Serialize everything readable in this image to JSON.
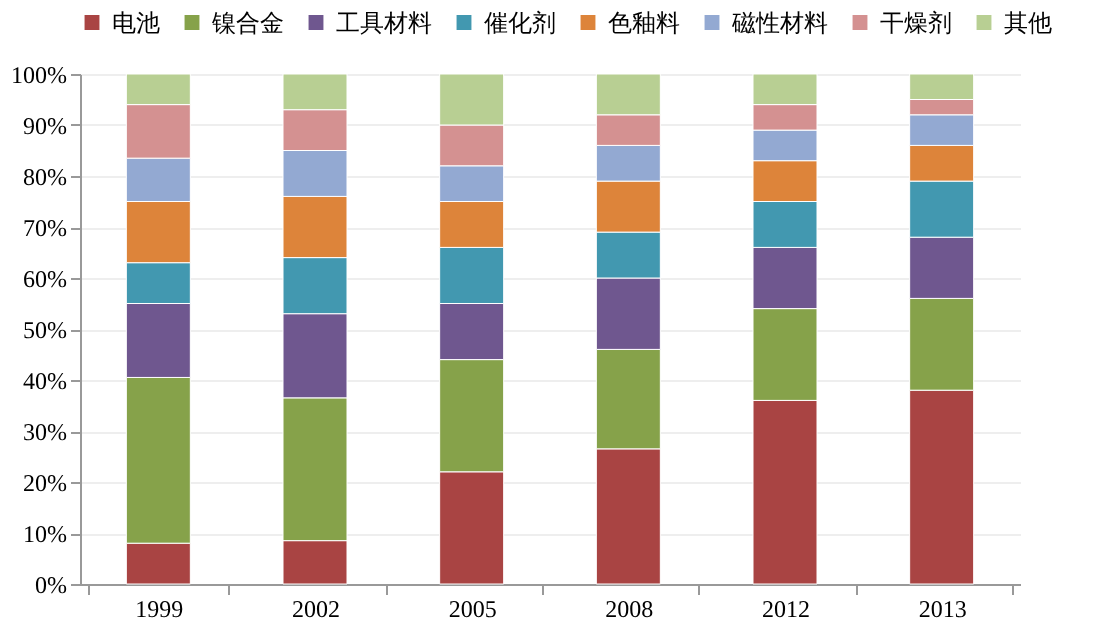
{
  "chart_data": {
    "type": "bar",
    "stacked": true,
    "categories": [
      "1999",
      "2002",
      "2005",
      "2008",
      "2012",
      "2013"
    ],
    "series": [
      {
        "name": "电池",
        "color": "#a94443",
        "values": [
          8,
          8.5,
          22,
          26.5,
          36,
          38
        ]
      },
      {
        "name": "镍合金",
        "color": "#86a24a",
        "values": [
          32.5,
          28,
          22,
          19.5,
          18,
          18
        ]
      },
      {
        "name": "工具材料",
        "color": "#6f578f",
        "values": [
          14.5,
          16.5,
          11,
          14,
          12,
          12
        ]
      },
      {
        "name": "催化剂",
        "color": "#4298b0",
        "values": [
          8,
          11,
          11,
          9,
          9,
          11
        ]
      },
      {
        "name": "色釉料",
        "color": "#dd843a",
        "values": [
          12,
          12,
          9,
          10,
          8,
          7
        ]
      },
      {
        "name": "磁性材料",
        "color": "#93a9d2",
        "values": [
          8.5,
          9,
          7,
          7,
          6,
          6
        ]
      },
      {
        "name": "干燥剂",
        "color": "#d49191",
        "values": [
          10.5,
          8,
          8,
          6,
          5,
          3
        ]
      },
      {
        "name": "其他",
        "color": "#b8cf93",
        "values": [
          6,
          7,
          10,
          8,
          6,
          5
        ]
      }
    ],
    "ylim": [
      0,
      100
    ],
    "yticks": [
      {
        "value": 0,
        "label": "0%"
      },
      {
        "value": 10,
        "label": "10%"
      },
      {
        "value": 20,
        "label": "20%"
      },
      {
        "value": 30,
        "label": "30%"
      },
      {
        "value": 40,
        "label": "40%"
      },
      {
        "value": 50,
        "label": "50%"
      },
      {
        "value": 60,
        "label": "60%"
      },
      {
        "value": 70,
        "label": "70%"
      },
      {
        "value": 80,
        "label": "80%"
      },
      {
        "value": 90,
        "label": "90%"
      },
      {
        "value": 100,
        "label": "100%"
      }
    ],
    "grid": "y",
    "legend": "top"
  }
}
